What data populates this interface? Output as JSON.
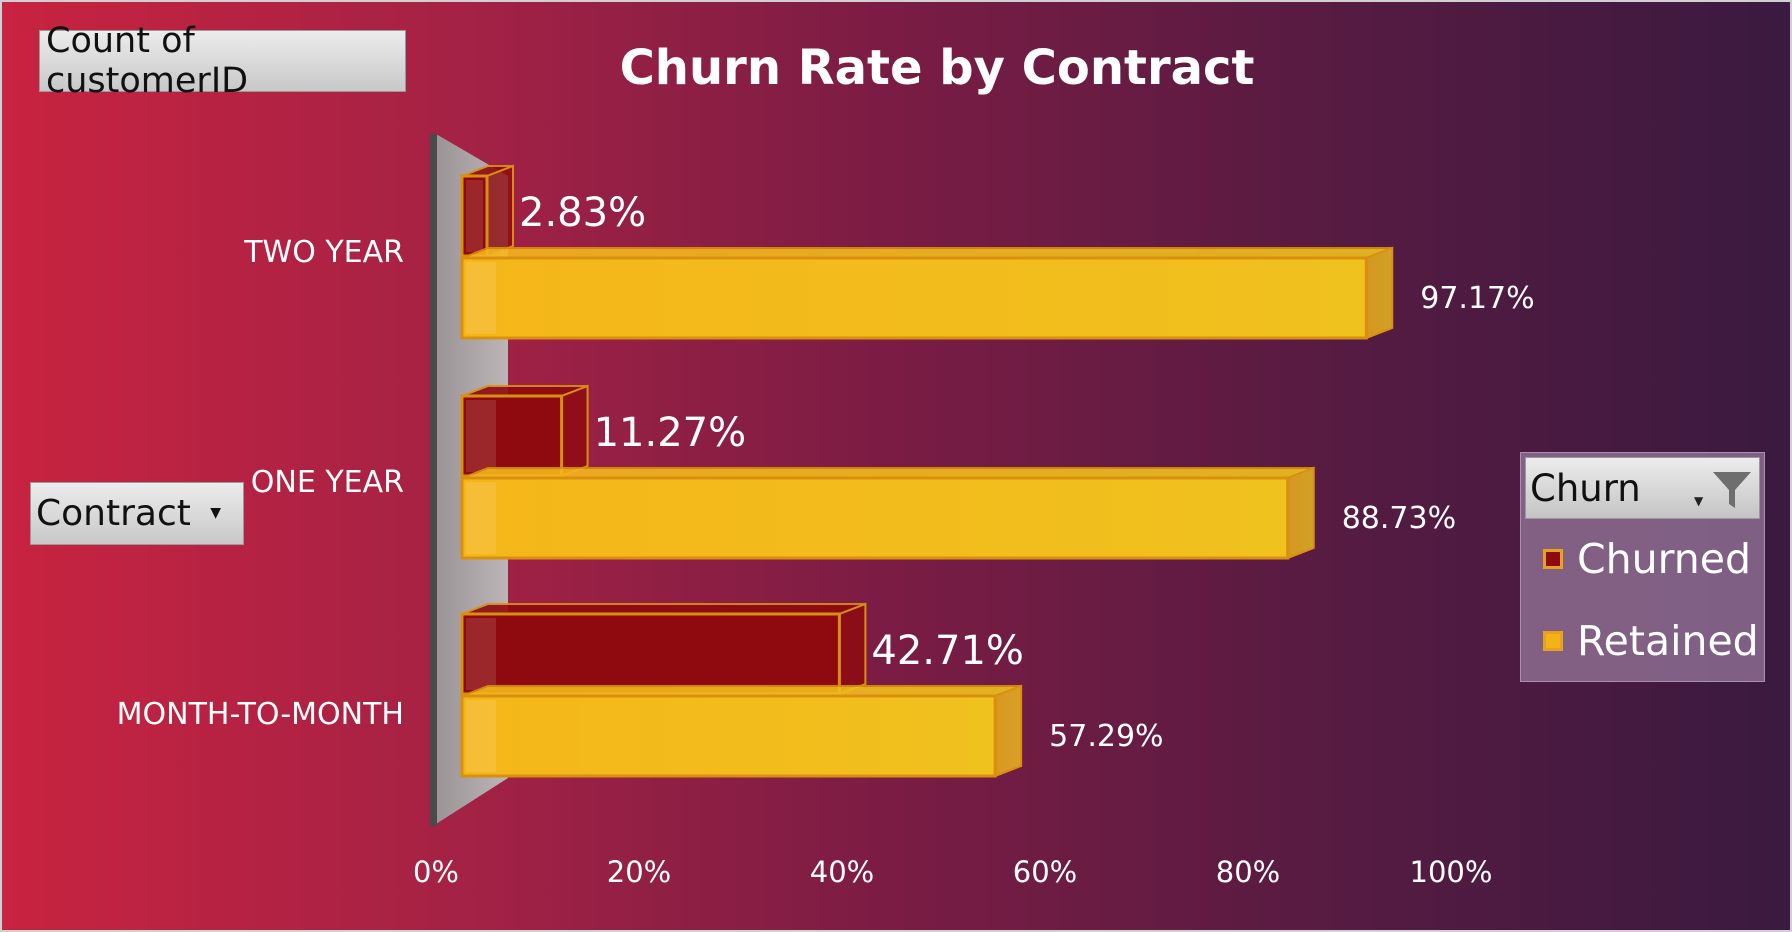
{
  "pivot": {
    "value_field": "Count of customerID",
    "row_field": "Contract"
  },
  "legend": {
    "header": "Churn",
    "items": [
      {
        "label": "Churned",
        "color": "#8f0a0e"
      },
      {
        "label": "Retained",
        "color": "#f2b21c"
      }
    ]
  },
  "colors": {
    "churned": "#8f0a0e",
    "retained": "#f2b21c",
    "bar_edge": "#d98f10"
  },
  "chart_data": {
    "type": "bar",
    "orientation": "horizontal",
    "style": "3d",
    "title": "Churn Rate by Contract",
    "categories": [
      "TWO YEAR",
      "ONE YEAR",
      "MONTH-TO-MONTH"
    ],
    "series": [
      {
        "name": "Churned",
        "values": [
          2.83,
          11.27,
          42.71
        ],
        "labels": [
          "2.83%",
          "11.27%",
          "42.71%"
        ]
      },
      {
        "name": "Retained",
        "values": [
          97.17,
          88.73,
          57.29
        ],
        "labels": [
          "97.17%",
          "88.73%",
          "57.29%"
        ]
      }
    ],
    "x_ticks": [
      "0%",
      "20%",
      "40%",
      "60%",
      "80%",
      "100%"
    ],
    "xlim": [
      0,
      100
    ],
    "grid": false,
    "legend_position": "right"
  }
}
